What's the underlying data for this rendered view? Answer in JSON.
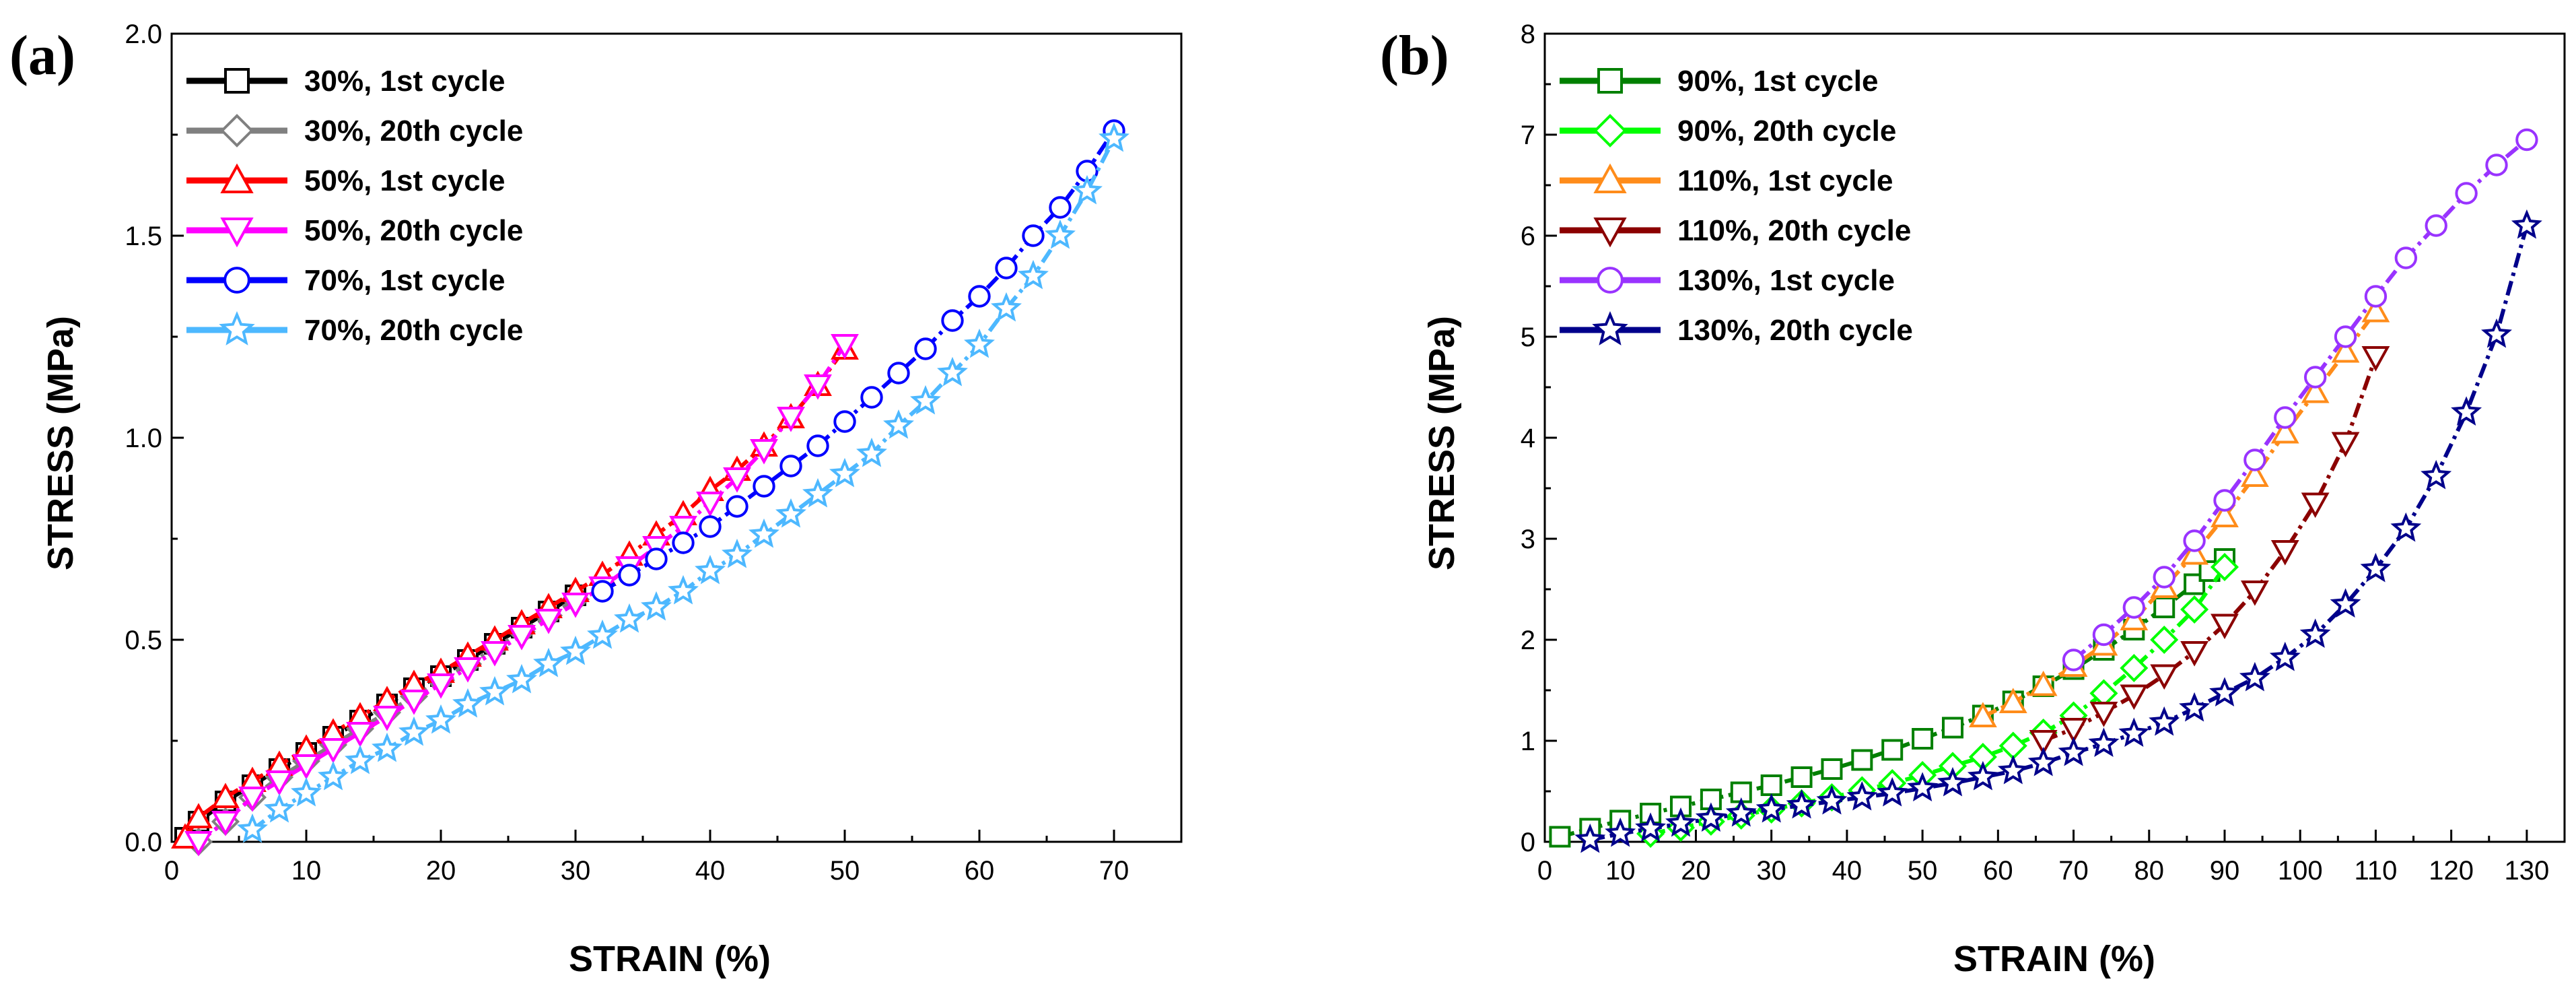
{
  "chart_data": [
    {
      "type": "line",
      "panel_label": "(a)",
      "xlabel": "STRAIN (%)",
      "ylabel": "STRESS (MPa)",
      "xlim": [
        0,
        75
      ],
      "ylim": [
        0,
        2.0
      ],
      "xticks": [
        "0",
        "10",
        "20",
        "30",
        "40",
        "50",
        "60",
        "70"
      ],
      "yticks": [
        "0.0",
        "0.5",
        "1.0",
        "1.5",
        "2.0"
      ],
      "legend_position": "top-left",
      "grid": false,
      "series": [
        {
          "name": "30%, 1st cycle",
          "color": "#000000",
          "marker": "square",
          "x": [
            1,
            2,
            4,
            6,
            8,
            10,
            12,
            14,
            16,
            18,
            20,
            22,
            24,
            26,
            28,
            30
          ],
          "y": [
            0.01,
            0.05,
            0.1,
            0.14,
            0.18,
            0.22,
            0.26,
            0.3,
            0.34,
            0.38,
            0.41,
            0.45,
            0.49,
            0.53,
            0.57,
            0.61
          ]
        },
        {
          "name": "30%, 20th cycle",
          "color": "#808080",
          "marker": "diamond",
          "x": [
            2,
            4,
            6,
            8,
            10,
            12,
            14,
            16,
            18,
            20,
            22,
            24,
            26,
            28,
            30
          ],
          "y": [
            0.0,
            0.05,
            0.11,
            0.16,
            0.2,
            0.24,
            0.28,
            0.32,
            0.36,
            0.4,
            0.44,
            0.48,
            0.52,
            0.56,
            0.6
          ]
        },
        {
          "name": "50%, 1st cycle",
          "color": "#ff0000",
          "marker": "triangle-up",
          "x": [
            1,
            2,
            4,
            6,
            8,
            10,
            12,
            14,
            16,
            18,
            20,
            22,
            24,
            26,
            28,
            30,
            32,
            34,
            36,
            38,
            40,
            42,
            44,
            46,
            48,
            50
          ],
          "y": [
            0.01,
            0.06,
            0.11,
            0.15,
            0.19,
            0.23,
            0.27,
            0.31,
            0.35,
            0.39,
            0.42,
            0.46,
            0.5,
            0.54,
            0.58,
            0.62,
            0.66,
            0.71,
            0.76,
            0.81,
            0.87,
            0.92,
            0.98,
            1.05,
            1.13,
            1.22
          ]
        },
        {
          "name": "50%, 20th cycle",
          "color": "#ff00ff",
          "marker": "triangle-down",
          "x": [
            2,
            4,
            6,
            8,
            10,
            12,
            14,
            16,
            18,
            20,
            22,
            24,
            26,
            28,
            30,
            32,
            34,
            36,
            38,
            40,
            42,
            44,
            46,
            48,
            50
          ],
          "y": [
            0.0,
            0.05,
            0.11,
            0.15,
            0.19,
            0.23,
            0.27,
            0.31,
            0.35,
            0.39,
            0.43,
            0.47,
            0.51,
            0.55,
            0.59,
            0.63,
            0.68,
            0.73,
            0.78,
            0.84,
            0.9,
            0.97,
            1.05,
            1.13,
            1.23
          ]
        },
        {
          "name": "70%, 1st cycle",
          "color": "#0000ff",
          "marker": "circle",
          "x": [
            32,
            34,
            36,
            38,
            40,
            42,
            44,
            46,
            48,
            50,
            52,
            54,
            56,
            58,
            60,
            62,
            64,
            66,
            68,
            70
          ],
          "y": [
            0.62,
            0.66,
            0.7,
            0.74,
            0.78,
            0.83,
            0.88,
            0.93,
            0.98,
            1.04,
            1.1,
            1.16,
            1.22,
            1.29,
            1.35,
            1.42,
            1.5,
            1.57,
            1.66,
            1.76
          ]
        },
        {
          "name": "70%, 20th cycle",
          "color": "#4db8ff",
          "marker": "star",
          "x": [
            6,
            8,
            10,
            12,
            14,
            16,
            18,
            20,
            22,
            24,
            26,
            28,
            30,
            32,
            34,
            36,
            38,
            40,
            42,
            44,
            46,
            48,
            50,
            52,
            54,
            56,
            58,
            60,
            62,
            64,
            66,
            68,
            70
          ],
          "y": [
            0.03,
            0.08,
            0.12,
            0.16,
            0.2,
            0.23,
            0.27,
            0.3,
            0.34,
            0.37,
            0.4,
            0.44,
            0.47,
            0.51,
            0.55,
            0.58,
            0.62,
            0.67,
            0.71,
            0.76,
            0.81,
            0.86,
            0.91,
            0.96,
            1.03,
            1.09,
            1.16,
            1.23,
            1.32,
            1.4,
            1.5,
            1.61,
            1.74
          ]
        }
      ]
    },
    {
      "type": "line",
      "panel_label": "(b)",
      "xlabel": "STRAIN (%)",
      "ylabel": "STRESS (MPa)",
      "xlim": [
        0,
        135
      ],
      "ylim": [
        0,
        8
      ],
      "xticks": [
        "0",
        "10",
        "20",
        "30",
        "40",
        "50",
        "60",
        "70",
        "80",
        "90",
        "100",
        "110",
        "120",
        "130"
      ],
      "yticks": [
        "0",
        "1",
        "2",
        "3",
        "4",
        "5",
        "6",
        "7",
        "8"
      ],
      "legend_position": "top-left",
      "grid": false,
      "series": [
        {
          "name": "90%, 1st cycle",
          "color": "#008000",
          "marker": "square",
          "x": [
            2,
            6,
            10,
            14,
            18,
            22,
            26,
            30,
            34,
            38,
            42,
            46,
            50,
            54,
            58,
            62,
            66,
            70,
            74,
            78,
            82,
            86,
            88,
            90
          ],
          "y": [
            0.05,
            0.13,
            0.21,
            0.28,
            0.35,
            0.42,
            0.49,
            0.56,
            0.64,
            0.72,
            0.81,
            0.91,
            1.02,
            1.13,
            1.25,
            1.39,
            1.54,
            1.71,
            1.9,
            2.1,
            2.32,
            2.55,
            2.68,
            2.8
          ]
        },
        {
          "name": "90%, 20th cycle",
          "color": "#00ff00",
          "marker": "diamond",
          "x": [
            14,
            18,
            22,
            26,
            30,
            34,
            38,
            42,
            46,
            50,
            54,
            58,
            62,
            66,
            70,
            74,
            78,
            82,
            86,
            90
          ],
          "y": [
            0.08,
            0.14,
            0.2,
            0.26,
            0.32,
            0.38,
            0.44,
            0.51,
            0.58,
            0.66,
            0.75,
            0.84,
            0.95,
            1.08,
            1.25,
            1.47,
            1.72,
            2.0,
            2.3,
            2.72
          ]
        },
        {
          "name": "110%, 1st cycle",
          "color": "#ff8c1a",
          "marker": "triangle-up",
          "x": [
            58,
            62,
            66,
            70,
            74,
            78,
            82,
            86,
            90,
            94,
            98,
            102,
            106,
            110
          ],
          "y": [
            1.24,
            1.38,
            1.55,
            1.74,
            1.95,
            2.2,
            2.52,
            2.85,
            3.22,
            3.62,
            4.05,
            4.45,
            4.85,
            5.25
          ]
        },
        {
          "name": "110%, 20th cycle",
          "color": "#8b0000",
          "marker": "triangle-down",
          "x": [
            66,
            70,
            74,
            78,
            82,
            86,
            90,
            94,
            98,
            102,
            106,
            110
          ],
          "y": [
            1.0,
            1.12,
            1.28,
            1.45,
            1.65,
            1.88,
            2.15,
            2.48,
            2.88,
            3.35,
            3.95,
            4.8
          ]
        },
        {
          "name": "130%, 1st cycle",
          "color": "#9933ff",
          "marker": "circle",
          "x": [
            70,
            74,
            78,
            82,
            86,
            90,
            94,
            98,
            102,
            106,
            110,
            114,
            118,
            122,
            126,
            130
          ],
          "y": [
            1.8,
            2.05,
            2.32,
            2.62,
            2.98,
            3.38,
            3.78,
            4.2,
            4.6,
            5.0,
            5.4,
            5.78,
            6.1,
            6.42,
            6.7,
            6.95
          ]
        },
        {
          "name": "130%, 20th cycle",
          "color": "#00008b",
          "marker": "star",
          "x": [
            6,
            10,
            14,
            18,
            22,
            26,
            30,
            34,
            38,
            42,
            46,
            50,
            54,
            58,
            62,
            66,
            70,
            74,
            78,
            82,
            86,
            90,
            94,
            98,
            102,
            106,
            110,
            114,
            118,
            122,
            126,
            130
          ],
          "y": [
            0.02,
            0.08,
            0.13,
            0.18,
            0.23,
            0.28,
            0.32,
            0.36,
            0.4,
            0.44,
            0.48,
            0.53,
            0.58,
            0.64,
            0.7,
            0.78,
            0.88,
            0.97,
            1.07,
            1.18,
            1.32,
            1.47,
            1.62,
            1.82,
            2.05,
            2.35,
            2.7,
            3.1,
            3.62,
            4.25,
            5.02,
            6.1
          ]
        }
      ]
    }
  ]
}
